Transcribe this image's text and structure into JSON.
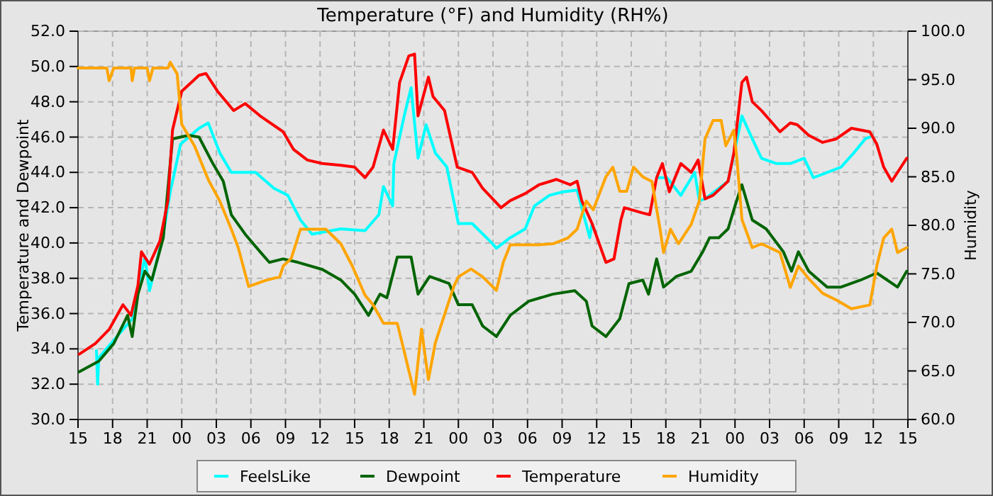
{
  "chart_data": {
    "type": "line",
    "title": "Temperature (°F) and Humidity (RH%)",
    "ylabel": "Temperature and Dewpoint",
    "y2label": "Humidity",
    "grid": true,
    "legend": "bottom",
    "line_style": "solid",
    "marker": "none",
    "xlim": [
      15,
      87
    ],
    "xticks": [
      {
        "value": 15,
        "label": "15"
      },
      {
        "value": 18,
        "label": "18"
      },
      {
        "value": 21,
        "label": "21"
      },
      {
        "value": 24,
        "label": "00"
      },
      {
        "value": 27,
        "label": "03"
      },
      {
        "value": 30,
        "label": "06"
      },
      {
        "value": 33,
        "label": "09"
      },
      {
        "value": 36,
        "label": "12"
      },
      {
        "value": 39,
        "label": "15"
      },
      {
        "value": 42,
        "label": "18"
      },
      {
        "value": 45,
        "label": "21"
      },
      {
        "value": 48,
        "label": "00"
      },
      {
        "value": 51,
        "label": "03"
      },
      {
        "value": 54,
        "label": "06"
      },
      {
        "value": 57,
        "label": "09"
      },
      {
        "value": 60,
        "label": "12"
      },
      {
        "value": 63,
        "label": "15"
      },
      {
        "value": 66,
        "label": "18"
      },
      {
        "value": 69,
        "label": "21"
      },
      {
        "value": 72,
        "label": "00"
      },
      {
        "value": 75,
        "label": "03"
      },
      {
        "value": 78,
        "label": "06"
      },
      {
        "value": 81,
        "label": "09"
      },
      {
        "value": 84,
        "label": "12"
      },
      {
        "value": 87,
        "label": "15"
      }
    ],
    "ylim": [
      30,
      52
    ],
    "yticks": [
      {
        "value": 30,
        "label": "30.0"
      },
      {
        "value": 32,
        "label": "32.0"
      },
      {
        "value": 34,
        "label": "34.0"
      },
      {
        "value": 36,
        "label": "36.0"
      },
      {
        "value": 38,
        "label": "38.0"
      },
      {
        "value": 40,
        "label": "40.0"
      },
      {
        "value": 42,
        "label": "42.0"
      },
      {
        "value": 44,
        "label": "44.0"
      },
      {
        "value": 46,
        "label": "46.0"
      },
      {
        "value": 48,
        "label": "48.0"
      },
      {
        "value": 50,
        "label": "50.0"
      },
      {
        "value": 52,
        "label": "52.0"
      }
    ],
    "y2lim": [
      60,
      100
    ],
    "y2ticks": [
      {
        "value": 60,
        "label": "60.0"
      },
      {
        "value": 65,
        "label": "65.0"
      },
      {
        "value": 70,
        "label": "70.0"
      },
      {
        "value": 75,
        "label": "75.0"
      },
      {
        "value": 80,
        "label": "80.0"
      },
      {
        "value": 85,
        "label": "85.0"
      },
      {
        "value": 90,
        "label": "90.0"
      },
      {
        "value": 95,
        "label": "95.0"
      },
      {
        "value": 100,
        "label": "100.0"
      }
    ],
    "series": [
      {
        "name": "FeelsLike",
        "color": "#00ffff",
        "x": [
          16.6,
          16.7,
          16.8,
          19.7,
          20.8,
          21.2,
          22.4,
          23.0,
          23.9,
          25.5,
          26.3,
          27.3,
          28.3,
          30.4,
          32.0,
          33.2,
          34.3,
          35.3,
          37.8,
          39.9,
          41.1,
          41.5,
          42.3,
          42.4,
          43.3,
          43.9,
          44.5,
          45.2,
          46.0,
          47.0,
          48.0,
          49.2,
          50.9,
          51.3,
          52.5,
          53.8,
          54.6,
          55.9,
          57.1,
          58.3,
          59.4,
          59.6,
          60.8,
          61.5,
          62.4,
          64.6,
          65.2,
          66.1,
          67.3,
          68.5,
          68.9,
          69.4,
          71.4,
          72.0,
          72.6,
          73.5,
          74.3,
          75.6,
          76.8,
          78.0,
          78.8,
          80.0,
          81.2,
          82.3,
          83.3,
          83.7
        ],
        "values": [
          33.9,
          32.0,
          33.5,
          35.7,
          39.2,
          37.3,
          40.5,
          42.9,
          45.6,
          46.5,
          46.8,
          45.1,
          44.0,
          44.0,
          43.1,
          42.7,
          41.3,
          40.5,
          40.8,
          40.7,
          41.6,
          43.2,
          42.1,
          44.5,
          47.2,
          48.8,
          44.8,
          46.7,
          45.1,
          44.3,
          41.1,
          41.1,
          40.0,
          39.7,
          40.3,
          40.8,
          42.1,
          42.7,
          42.9,
          43.0,
          40.3,
          41.1,
          null,
          null,
          null,
          null,
          43.7,
          43.7,
          42.7,
          44.0,
          42.4,
          42.5,
          43.5,
          45.3,
          47.2,
          45.9,
          44.8,
          44.5,
          44.5,
          44.8,
          43.7,
          44.0,
          44.3,
          45.1,
          45.9,
          46.0
        ]
      },
      {
        "name": "Dewpoint",
        "color": "#006400",
        "x": [
          15.1,
          16.8,
          18.1,
          19.3,
          19.7,
          20.2,
          20.8,
          21.4,
          22.4,
          23.2,
          24.6,
          25.5,
          26.7,
          27.6,
          28.3,
          29.5,
          30.8,
          31.6,
          32.8,
          34.1,
          36.2,
          37.8,
          39.0,
          40.2,
          41.2,
          41.8,
          42.7,
          43.9,
          44.5,
          45.5,
          47.2,
          48.0,
          49.2,
          50.1,
          51.3,
          52.5,
          54.1,
          56.2,
          58.1,
          59.1,
          59.6,
          60.8,
          62.0,
          62.8,
          64.0,
          64.5,
          65.2,
          65.8,
          66.9,
          68.2,
          69.2,
          69.8,
          70.6,
          71.4,
          72.0,
          72.6,
          73.5,
          74.7,
          76.2,
          76.9,
          77.5,
          78.4,
          80.0,
          81.2,
          82.9,
          84.3,
          86.1,
          86.9
        ],
        "values": [
          32.7,
          33.3,
          34.3,
          35.9,
          34.7,
          37.1,
          38.4,
          37.9,
          40.3,
          45.9,
          46.1,
          46.0,
          44.5,
          43.5,
          41.6,
          40.5,
          39.5,
          38.9,
          39.1,
          38.9,
          38.5,
          37.9,
          37.1,
          35.9,
          37.1,
          36.9,
          39.2,
          39.2,
          37.1,
          38.1,
          37.7,
          36.5,
          36.5,
          35.3,
          34.7,
          35.9,
          36.7,
          37.1,
          37.3,
          36.7,
          35.3,
          34.7,
          35.7,
          37.7,
          37.9,
          37.1,
          39.1,
          37.5,
          38.1,
          38.4,
          39.5,
          40.3,
          40.3,
          40.8,
          42.1,
          43.3,
          41.3,
          40.8,
          39.5,
          38.4,
          39.5,
          38.4,
          37.5,
          37.5,
          37.9,
          38.3,
          37.5,
          38.4
        ]
      },
      {
        "name": "Temperature",
        "color": "#ff0000",
        "x": [
          15.1,
          16.5,
          17.7,
          18.9,
          19.6,
          20.2,
          20.5,
          21.2,
          22.1,
          22.8,
          23.2,
          24.0,
          25.5,
          26.1,
          27.1,
          28.5,
          29.5,
          30.8,
          32.8,
          33.7,
          34.9,
          36.2,
          37.8,
          39.0,
          39.9,
          40.6,
          41.5,
          42.3,
          42.9,
          43.7,
          44.2,
          44.5,
          45.4,
          45.8,
          46.8,
          47.9,
          49.2,
          50.1,
          51.7,
          52.5,
          53.8,
          55.0,
          56.5,
          57.7,
          58.3,
          58.7,
          59.6,
          60.8,
          61.5,
          62.1,
          62.4,
          64.0,
          64.6,
          65.2,
          65.7,
          66.3,
          67.3,
          68.2,
          68.8,
          69.4,
          70.1,
          71.4,
          71.9,
          72.6,
          73.0,
          73.5,
          74.3,
          75.1,
          75.9,
          76.8,
          77.4,
          78.4,
          79.6,
          80.8,
          82.1,
          83.7,
          84.3,
          84.9,
          85.6,
          86.9
        ],
        "values": [
          33.7,
          34.3,
          35.1,
          36.5,
          35.9,
          37.6,
          39.5,
          38.8,
          40.1,
          42.4,
          46.4,
          48.6,
          49.5,
          49.6,
          48.6,
          47.5,
          47.9,
          47.2,
          46.3,
          45.3,
          44.7,
          44.5,
          44.4,
          44.3,
          43.7,
          44.3,
          46.4,
          45.3,
          49.1,
          50.6,
          50.7,
          47.2,
          49.4,
          48.3,
          47.5,
          44.3,
          44.0,
          43.1,
          42.0,
          42.4,
          42.8,
          43.3,
          43.6,
          43.3,
          43.5,
          42.4,
          41.1,
          38.9,
          39.1,
          41.3,
          42.0,
          41.7,
          41.6,
          43.7,
          44.5,
          42.9,
          44.5,
          44.0,
          44.7,
          42.5,
          42.7,
          43.5,
          45.1,
          49.1,
          49.4,
          48.0,
          47.5,
          46.9,
          46.3,
          46.8,
          46.7,
          46.1,
          45.7,
          45.9,
          46.5,
          46.3,
          45.6,
          44.3,
          43.5,
          44.8
        ]
      },
      {
        "name": "Humidity",
        "color": "#ffa500",
        "axis": "y2",
        "x": [
          15,
          17.5,
          17.7,
          18.1,
          19.6,
          19.7,
          19.9,
          21.0,
          21.2,
          21.5,
          22.8,
          23.0,
          23.6,
          24.0,
          25.1,
          26.3,
          27.3,
          28.3,
          28.9,
          29.8,
          31.2,
          32.5,
          32.8,
          33.5,
          34.3,
          36.5,
          37.8,
          38.8,
          39.9,
          40.6,
          41.5,
          42.7,
          43.3,
          44.2,
          44.8,
          45.4,
          46.0,
          46.8,
          47.6,
          48.0,
          49.1,
          50.1,
          51.3,
          51.9,
          52.5,
          55.0,
          56.2,
          57.5,
          58.3,
          59.1,
          59.7,
          60.8,
          61.4,
          62.0,
          62.6,
          63.2,
          64.0,
          64.8,
          65.5,
          65.8,
          66.4,
          67.1,
          68.2,
          68.9,
          69.4,
          70.1,
          70.8,
          71.2,
          71.9,
          72.2,
          72.6,
          73.5,
          74.3,
          75.9,
          76.8,
          77.5,
          78.4,
          79.6,
          80.8,
          82.1,
          83.7,
          84.3,
          84.9,
          85.6,
          86.1,
          86.9
        ],
        "values": [
          96.2,
          96.2,
          94.9,
          96.2,
          96.2,
          94.9,
          96.2,
          96.2,
          94.9,
          96.2,
          96.2,
          96.8,
          95.6,
          90.4,
          88.2,
          84.7,
          82.5,
          79.6,
          77.7,
          73.7,
          74.3,
          74.7,
          75.8,
          76.6,
          79.6,
          79.6,
          78.1,
          75.8,
          72.8,
          71.8,
          69.9,
          69.9,
          67.0,
          62.6,
          69.3,
          64.1,
          67.9,
          70.8,
          73.7,
          74.7,
          75.5,
          74.7,
          73.3,
          76.2,
          78.0,
          78.0,
          78.1,
          78.7,
          79.6,
          82.5,
          81.6,
          85.0,
          86.0,
          83.5,
          83.5,
          86.0,
          85.0,
          84.5,
          79.6,
          77.2,
          79.6,
          78.1,
          80.1,
          82.5,
          88.9,
          90.8,
          90.8,
          88.2,
          89.8,
          86.4,
          80.6,
          77.7,
          78.1,
          77.2,
          73.6,
          75.8,
          74.5,
          73.0,
          72.3,
          71.4,
          71.8,
          75.8,
          78.7,
          79.6,
          77.2,
          77.7
        ]
      }
    ]
  }
}
